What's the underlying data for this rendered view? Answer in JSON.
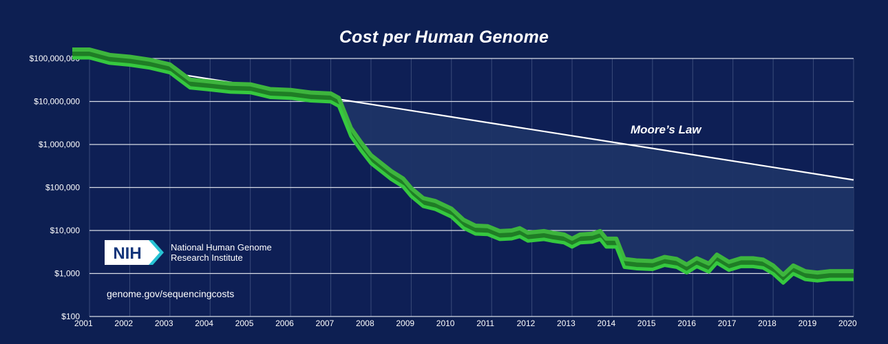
{
  "chart_data": {
    "type": "line",
    "title": "Cost per Human Genome",
    "y_scale": "log",
    "ylim": [
      100,
      100000000
    ],
    "x_range": [
      2001,
      2020
    ],
    "y_ticks": [
      {
        "value": 100,
        "label": "$100"
      },
      {
        "value": 1000,
        "label": "$1,000"
      },
      {
        "value": 10000,
        "label": "$10,000"
      },
      {
        "value": 100000,
        "label": "$100,000"
      },
      {
        "value": 1000000,
        "label": "$1,000,000"
      },
      {
        "value": 10000000,
        "label": "$10,000,000"
      },
      {
        "value": 100000000,
        "label": "$100,000,000"
      }
    ],
    "x_ticks": [
      {
        "value": 2001,
        "label": "2001"
      },
      {
        "value": 2002,
        "label": "2002"
      },
      {
        "value": 2003,
        "label": "2003"
      },
      {
        "value": 2004,
        "label": "2004"
      },
      {
        "value": 2005,
        "label": "2005"
      },
      {
        "value": 2006,
        "label": "2006"
      },
      {
        "value": 2007,
        "label": "2007"
      },
      {
        "value": 2008,
        "label": "2008"
      },
      {
        "value": 2009,
        "label": "2009"
      },
      {
        "value": 2010,
        "label": "2010"
      },
      {
        "value": 2011,
        "label": "2011"
      },
      {
        "value": 2012,
        "label": "2012"
      },
      {
        "value": 2013,
        "label": "2013"
      },
      {
        "value": 2014,
        "label": "2014"
      },
      {
        "value": 2015,
        "label": "2015"
      },
      {
        "value": 2016,
        "label": "2016"
      },
      {
        "value": 2017,
        "label": "2017"
      },
      {
        "value": 2018,
        "label": "2018"
      },
      {
        "value": 2019,
        "label": "2019"
      },
      {
        "value": 2020,
        "label": "2020"
      }
    ],
    "grid": true,
    "series": [
      {
        "name": "",
        "color": "#3db53d",
        "points": [
          [
            2001.0,
            100000000
          ],
          [
            2001.5,
            75000000
          ],
          [
            2002.0,
            68000000
          ],
          [
            2002.5,
            58000000
          ],
          [
            2003.0,
            45000000
          ],
          [
            2003.5,
            20000000
          ],
          [
            2004.0,
            18000000
          ],
          [
            2004.5,
            16000000
          ],
          [
            2005.0,
            15500000
          ],
          [
            2005.5,
            12000000
          ],
          [
            2006.0,
            11500000
          ],
          [
            2006.5,
            10000000
          ],
          [
            2007.0,
            9500000
          ],
          [
            2007.2,
            7500000
          ],
          [
            2007.5,
            1500000
          ],
          [
            2007.75,
            700000
          ],
          [
            2008.0,
            350000
          ],
          [
            2008.5,
            150000
          ],
          [
            2008.8,
            100000
          ],
          [
            2009.0,
            60000
          ],
          [
            2009.3,
            35000
          ],
          [
            2009.6,
            30000
          ],
          [
            2010.0,
            20000
          ],
          [
            2010.3,
            11000
          ],
          [
            2010.6,
            8000
          ],
          [
            2010.9,
            7800
          ],
          [
            2011.2,
            6000
          ],
          [
            2011.5,
            6200
          ],
          [
            2011.7,
            7000
          ],
          [
            2011.9,
            5500
          ],
          [
            2012.3,
            6000
          ],
          [
            2012.5,
            5500
          ],
          [
            2012.8,
            5000
          ],
          [
            2013.0,
            4000
          ],
          [
            2013.2,
            5000
          ],
          [
            2013.5,
            5200
          ],
          [
            2013.7,
            6000
          ],
          [
            2013.85,
            4000
          ],
          [
            2014.1,
            4000
          ],
          [
            2014.3,
            1350
          ],
          [
            2014.6,
            1250
          ],
          [
            2015.0,
            1200
          ],
          [
            2015.3,
            1500
          ],
          [
            2015.6,
            1350
          ],
          [
            2015.85,
            1000
          ],
          [
            2016.1,
            1400
          ],
          [
            2016.4,
            1050
          ],
          [
            2016.6,
            1700
          ],
          [
            2016.9,
            1150
          ],
          [
            2017.2,
            1400
          ],
          [
            2017.5,
            1400
          ],
          [
            2017.75,
            1300
          ],
          [
            2018.0,
            950
          ],
          [
            2018.25,
            580
          ],
          [
            2018.5,
            950
          ],
          [
            2018.8,
            700
          ],
          [
            2019.1,
            650
          ],
          [
            2019.4,
            700
          ],
          [
            2019.7,
            700
          ]
        ]
      },
      {
        "name": "Moore’s Law",
        "color": "#ffffff",
        "points": [
          [
            2003.3,
            42000000
          ],
          [
            2020.0,
            150000
          ]
        ]
      }
    ],
    "annotations": [
      {
        "text": "Moore’s Law",
        "x": 2014.7,
        "y": 1700000
      }
    ]
  },
  "logo": {
    "badge_text": "NIH",
    "org_line1": "National Human Genome",
    "org_line2": "Research Institute"
  },
  "source_url": "genome.gov/sequencingcosts",
  "colors": {
    "background": "#0d1f52",
    "plot_background": "#0e1f55",
    "green_top": "#3db53d",
    "green_side": "#1f7d25",
    "fill_area": "#1e3466",
    "grid": "#d9dde8",
    "logo_badge": "#ffffff",
    "logo_text": "#13357a",
    "logo_chevron": "#27c3d4"
  }
}
